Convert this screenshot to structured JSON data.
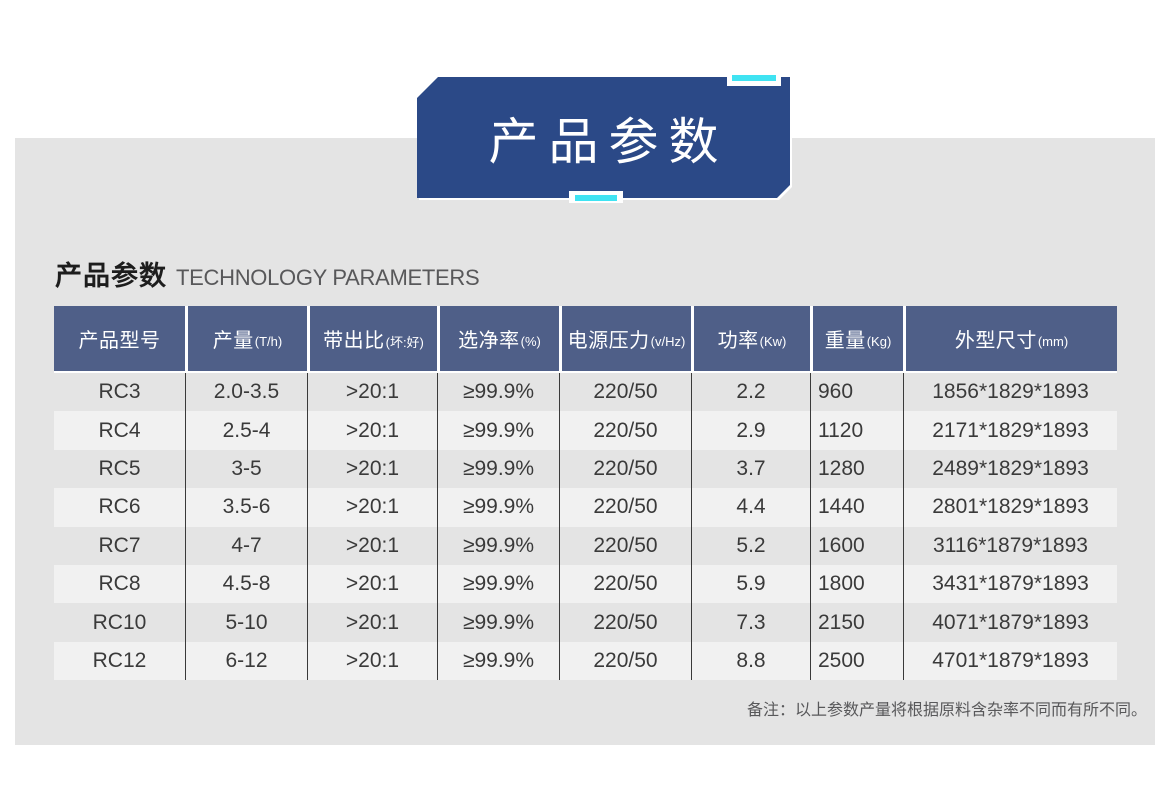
{
  "banner": {
    "title": "产品参数"
  },
  "section_header": {
    "title_zh": "产品参数",
    "title_en": "TECHNOLOGY PARAMETERS"
  },
  "table": {
    "columns": [
      {
        "label": "产品型号",
        "sub": ""
      },
      {
        "label": "产量",
        "sub": "(T/h)"
      },
      {
        "label": "带出比",
        "sub": "(坏:好)"
      },
      {
        "label": "选净率",
        "sub": "(%)"
      },
      {
        "label": "电源压力",
        "sub": "(v/Hz)"
      },
      {
        "label": "功率",
        "sub": "(Kw)"
      },
      {
        "label": "重量",
        "sub": "(Kg)"
      },
      {
        "label": "外型尺寸",
        "sub": "(mm)"
      }
    ],
    "rows": [
      [
        "RC3",
        "2.0-3.5",
        ">20:1",
        "≥99.9%",
        "220/50",
        "2.2",
        "960",
        "1856*1829*1893"
      ],
      [
        "RC4",
        "2.5-4",
        ">20:1",
        "≥99.9%",
        "220/50",
        "2.9",
        "1120",
        "2171*1829*1893"
      ],
      [
        "RC5",
        "3-5",
        ">20:1",
        "≥99.9%",
        "220/50",
        "3.7",
        "1280",
        "2489*1829*1893"
      ],
      [
        "RC6",
        "3.5-6",
        ">20:1",
        "≥99.9%",
        "220/50",
        "4.4",
        "1440",
        "2801*1829*1893"
      ],
      [
        "RC7",
        "4-7",
        ">20:1",
        "≥99.9%",
        "220/50",
        "5.2",
        "1600",
        "3116*1879*1893"
      ],
      [
        "RC8",
        "4.5-8",
        ">20:1",
        "≥99.9%",
        "220/50",
        "5.9",
        "1800",
        "3431*1879*1893"
      ],
      [
        "RC10",
        "5-10",
        ">20:1",
        "≥99.9%",
        "220/50",
        "7.3",
        "2150",
        "4071*1879*1893"
      ],
      [
        "RC12",
        "6-12",
        ">20:1",
        "≥99.9%",
        "220/50",
        "8.8",
        "2500",
        "4701*1879*1893"
      ]
    ]
  },
  "note": "备注：以上参数产量将根据原料含杂率不同而有所不同。",
  "colors": {
    "banner_blue": "#2b4987",
    "header_blue": "#4f5f88",
    "accent_cyan": "#3fe3f2",
    "panel_grey": "#e4e4e4",
    "row_alt_light": "#f1f1f1"
  }
}
